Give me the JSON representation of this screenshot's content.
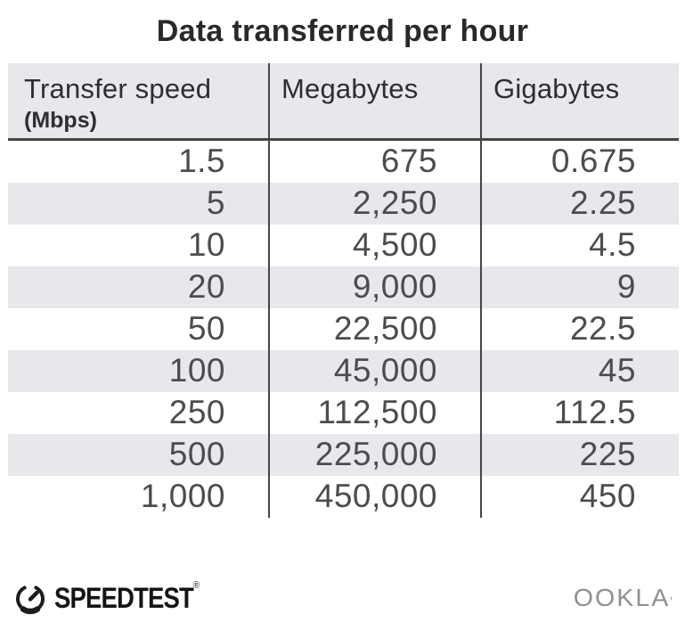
{
  "title": "Data transferred per hour",
  "table": {
    "columns": [
      {
        "label": "Transfer speed",
        "sublabel": "(Mbps)"
      },
      {
        "label": "Megabytes"
      },
      {
        "label": "Gigabytes"
      }
    ],
    "rows": [
      [
        "1.5",
        "675",
        "0.675"
      ],
      [
        "5",
        "2,250",
        "2.25"
      ],
      [
        "10",
        "4,500",
        "4.5"
      ],
      [
        "20",
        "9,000",
        "9"
      ],
      [
        "50",
        "22,500",
        "22.5"
      ],
      [
        "100",
        "45,000",
        "45"
      ],
      [
        "250",
        "112,500",
        "112.5"
      ],
      [
        "500",
        "225,000",
        "225"
      ],
      [
        "1,000",
        "450,000",
        "450"
      ]
    ]
  },
  "footer": {
    "brand": "SPEEDTEST",
    "brand_trademark": "®",
    "company": "OOKLA",
    "company_trademark": "'"
  },
  "colors": {
    "stripe_gray": "#e8e7eb",
    "rule_line": "#454545",
    "title_text": "#29282b",
    "cell_text": "#4c4c4f",
    "ookla_gray": "#8f9093",
    "speedtest_black": "#141415"
  },
  "chart_data": {
    "type": "table",
    "title": "Data transferred per hour",
    "columns": [
      "Transfer speed (Mbps)",
      "Megabytes",
      "Gigabytes"
    ],
    "rows": [
      [
        1.5,
        675,
        0.675
      ],
      [
        5,
        2250,
        2.25
      ],
      [
        10,
        4500,
        4.5
      ],
      [
        20,
        9000,
        9
      ],
      [
        50,
        22500,
        22.5
      ],
      [
        100,
        45000,
        45
      ],
      [
        250,
        112500,
        112.5
      ],
      [
        500,
        225000,
        225
      ],
      [
        1000,
        450000,
        450
      ]
    ]
  }
}
